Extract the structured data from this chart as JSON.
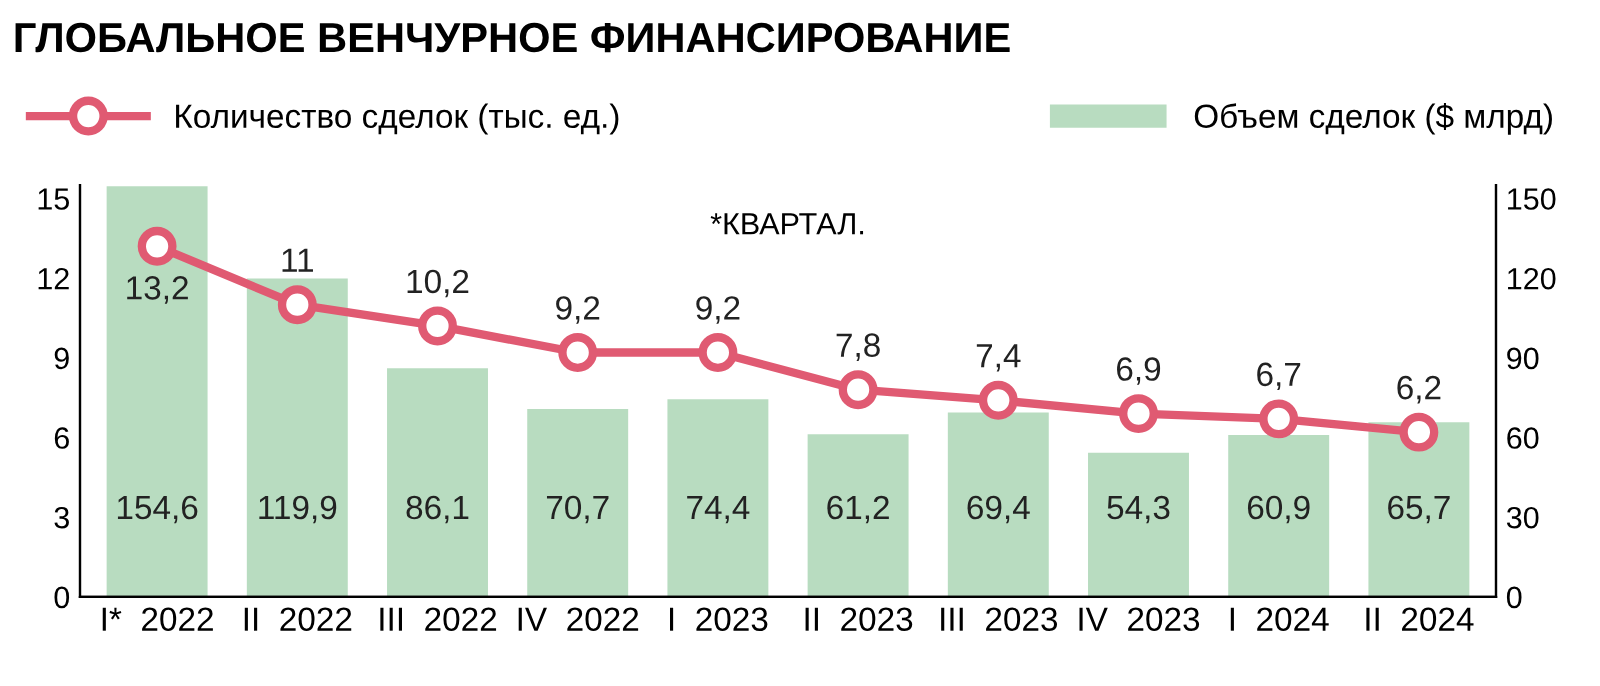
{
  "chart_data": {
    "type": "bar",
    "title": "ГЛОБАЛЬНОЕ ВЕНЧУРНОЕ ФИНАНСИРОВАНИЕ",
    "annotations": [
      "*КВАРТАЛ."
    ],
    "categories": [
      "I*  2022",
      "II  2022",
      "III  2022",
      "IV  2022",
      "I  2023",
      "II  2023",
      "III  2023",
      "IV  2023",
      "I  2024",
      "II  2024"
    ],
    "series": [
      {
        "name": "Количество сделок (тыс. ед.)",
        "type": "line",
        "color": "#e05a72",
        "marker": "circle",
        "line_style": "solid",
        "values": [
          13.2,
          11,
          10.2,
          9.2,
          9.2,
          7.8,
          7.4,
          6.9,
          6.7,
          6.2
        ],
        "value_labels": [
          "13,2",
          "11",
          "10,2",
          "9,2",
          "9,2",
          "7,8",
          "7,4",
          "6,9",
          "6,7",
          "6,2"
        ]
      },
      {
        "name": "Объем сделок ($ млрд)",
        "axis": "y2",
        "color": "#b8dcc0",
        "values": [
          154.6,
          119.9,
          86.1,
          70.7,
          74.4,
          61.2,
          69.4,
          54.3,
          60.9,
          65.7
        ],
        "value_labels": [
          "154,6",
          "119,9",
          "86,1",
          "70,7",
          "74,4",
          "61,2",
          "69,4",
          "54,3",
          "60,9",
          "65,7"
        ]
      }
    ],
    "ylim": [
      0,
      15.5
    ],
    "yticks": [
      0,
      3,
      6,
      9,
      12,
      15
    ],
    "y2lim": [
      0,
      155
    ],
    "y2ticks": [
      0,
      30,
      60,
      90,
      120,
      150
    ],
    "grid": false,
    "legend": "top"
  }
}
